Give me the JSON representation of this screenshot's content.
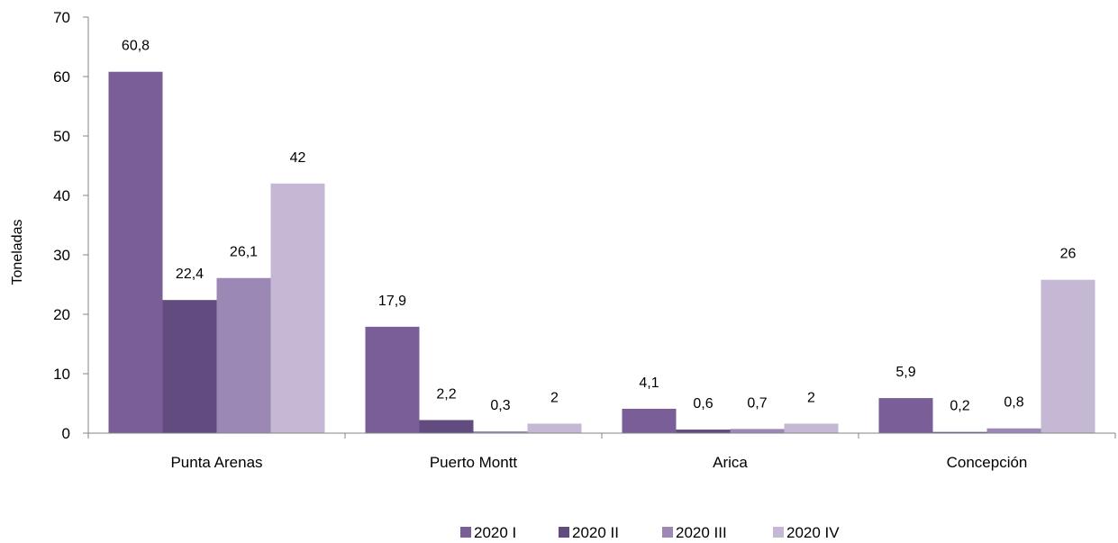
{
  "chart_data": {
    "type": "bar",
    "title": "",
    "xlabel": "",
    "ylabel": "Toneladas",
    "ylim": [
      0,
      70
    ],
    "yticks": [
      0,
      10,
      20,
      30,
      40,
      50,
      60,
      70
    ],
    "categories": [
      "Punta Arenas",
      "Puerto Montt",
      "Arica",
      "Concepción"
    ],
    "series": [
      {
        "name": "2020 I",
        "color": "#7a5e98",
        "values": [
          60.8,
          17.9,
          4.1,
          5.9
        ],
        "labels": [
          "60,8",
          "17,9",
          "4,1",
          "5,9"
        ]
      },
      {
        "name": "2020 II",
        "color": "#624c7f",
        "values": [
          22.4,
          2.2,
          0.6,
          0.2
        ],
        "labels": [
          "22,4",
          "2,2",
          "0,6",
          "0,2"
        ]
      },
      {
        "name": "2020 III",
        "color": "#9c88b5",
        "values": [
          26.1,
          0.3,
          0.7,
          0.8
        ],
        "labels": [
          "26,1",
          "0,3",
          "0,7",
          "0,8"
        ]
      },
      {
        "name": "2020 IV",
        "color": "#c4b8d4",
        "values": [
          42,
          1.6,
          1.6,
          25.8
        ],
        "labels": [
          "42",
          "2",
          "2",
          "26"
        ]
      }
    ],
    "grid": false,
    "legend_position": "bottom"
  }
}
